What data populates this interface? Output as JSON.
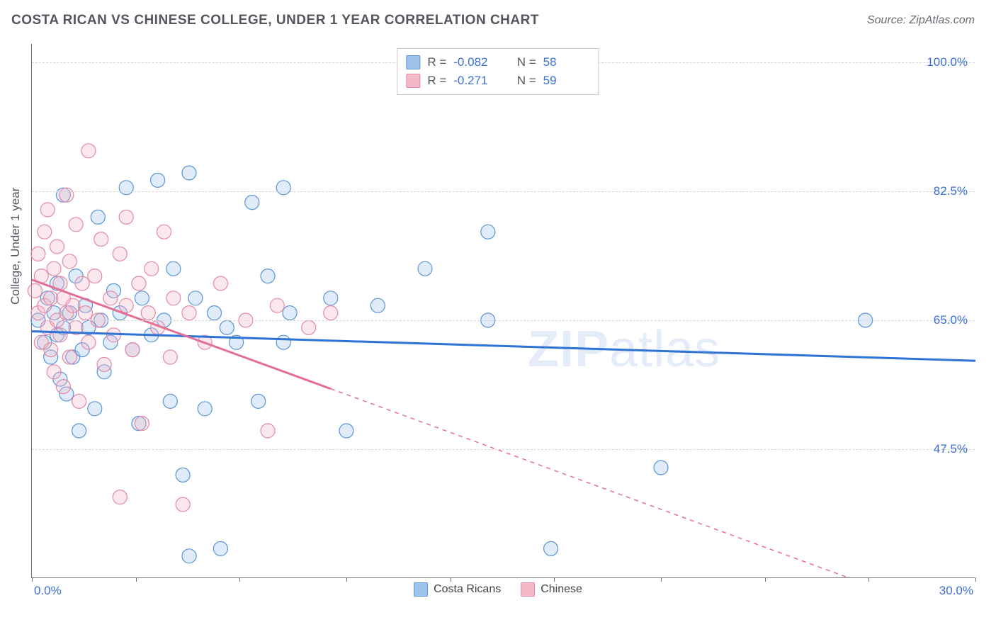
{
  "header": {
    "title": "COSTA RICAN VS CHINESE COLLEGE, UNDER 1 YEAR CORRELATION CHART",
    "source": "Source: ZipAtlas.com"
  },
  "chart": {
    "type": "scatter",
    "y_axis_title": "College, Under 1 year",
    "xlim": [
      0,
      30
    ],
    "ylim": [
      30,
      102.5
    ],
    "x_tick_positions": [
      0,
      3.3,
      6.6,
      10,
      13.3,
      16.6,
      20,
      23.3,
      26.6,
      30
    ],
    "x_label_min": "0.0%",
    "x_label_max": "30.0%",
    "y_ticks": [
      {
        "value": 100.0,
        "label": "100.0%"
      },
      {
        "value": 82.5,
        "label": "82.5%"
      },
      {
        "value": 65.0,
        "label": "65.0%"
      },
      {
        "value": 47.5,
        "label": "47.5%"
      }
    ],
    "grid_color": "#d5d5d5",
    "axis_color": "#707070",
    "background_color": "#ffffff",
    "watermark": "ZIPatlas",
    "marker_radius": 10,
    "series": [
      {
        "name": "Costa Ricans",
        "fill": "#9ec3ec",
        "stroke": "#5a93d6",
        "trend": {
          "x1": 0,
          "y1": 63.5,
          "x2": 30,
          "y2": 59.5,
          "solid_until_x": 30,
          "color": "#2d74d6",
          "width": 3
        },
        "points": [
          [
            0.2,
            65
          ],
          [
            0.4,
            62
          ],
          [
            0.5,
            68
          ],
          [
            0.6,
            60
          ],
          [
            0.7,
            66
          ],
          [
            0.8,
            63
          ],
          [
            0.8,
            70
          ],
          [
            0.9,
            57
          ],
          [
            1.0,
            82
          ],
          [
            1.0,
            64
          ],
          [
            1.1,
            55
          ],
          [
            1.2,
            66
          ],
          [
            1.3,
            60
          ],
          [
            1.4,
            71
          ],
          [
            1.5,
            50
          ],
          [
            1.6,
            61
          ],
          [
            1.7,
            67
          ],
          [
            1.8,
            64
          ],
          [
            2.0,
            53
          ],
          [
            2.1,
            79
          ],
          [
            2.2,
            65
          ],
          [
            2.3,
            58
          ],
          [
            2.5,
            62
          ],
          [
            2.6,
            69
          ],
          [
            2.8,
            66
          ],
          [
            3.0,
            83
          ],
          [
            3.2,
            61
          ],
          [
            3.4,
            51
          ],
          [
            3.5,
            68
          ],
          [
            3.8,
            63
          ],
          [
            4.0,
            84
          ],
          [
            4.2,
            65
          ],
          [
            4.4,
            54
          ],
          [
            4.5,
            72
          ],
          [
            4.8,
            44
          ],
          [
            5.0,
            85
          ],
          [
            5.0,
            33
          ],
          [
            5.2,
            68
          ],
          [
            5.5,
            53
          ],
          [
            5.8,
            66
          ],
          [
            6.0,
            34
          ],
          [
            6.2,
            64
          ],
          [
            6.5,
            62
          ],
          [
            7.0,
            81
          ],
          [
            7.2,
            54
          ],
          [
            7.5,
            71
          ],
          [
            8.0,
            83
          ],
          [
            8.0,
            62
          ],
          [
            8.2,
            66
          ],
          [
            9.5,
            68
          ],
          [
            10.0,
            50
          ],
          [
            11.0,
            67
          ],
          [
            12.5,
            72
          ],
          [
            14.5,
            77
          ],
          [
            16.5,
            34
          ],
          [
            20.0,
            45
          ],
          [
            26.5,
            65
          ],
          [
            14.5,
            65
          ]
        ]
      },
      {
        "name": "Chinese",
        "fill": "#f3b9c8",
        "stroke": "#e389a3",
        "trend": {
          "x1": 0,
          "y1": 70.5,
          "x2": 26,
          "y2": 30,
          "solid_until_x": 9.5,
          "color": "#e26f94",
          "width": 3
        },
        "points": [
          [
            0.1,
            69
          ],
          [
            0.2,
            66
          ],
          [
            0.2,
            74
          ],
          [
            0.3,
            62
          ],
          [
            0.3,
            71
          ],
          [
            0.4,
            67
          ],
          [
            0.4,
            77
          ],
          [
            0.5,
            64
          ],
          [
            0.5,
            80
          ],
          [
            0.6,
            61
          ],
          [
            0.6,
            68
          ],
          [
            0.7,
            72
          ],
          [
            0.7,
            58
          ],
          [
            0.8,
            65
          ],
          [
            0.8,
            75
          ],
          [
            0.9,
            63
          ],
          [
            0.9,
            70
          ],
          [
            1.0,
            56
          ],
          [
            1.0,
            68
          ],
          [
            1.1,
            82
          ],
          [
            1.1,
            66
          ],
          [
            1.2,
            60
          ],
          [
            1.2,
            73
          ],
          [
            1.3,
            67
          ],
          [
            1.4,
            78
          ],
          [
            1.4,
            64
          ],
          [
            1.5,
            54
          ],
          [
            1.6,
            70
          ],
          [
            1.7,
            66
          ],
          [
            1.8,
            62
          ],
          [
            1.8,
            88
          ],
          [
            2.0,
            71
          ],
          [
            2.1,
            65
          ],
          [
            2.2,
            76
          ],
          [
            2.3,
            59
          ],
          [
            2.5,
            68
          ],
          [
            2.6,
            63
          ],
          [
            2.8,
            74
          ],
          [
            2.8,
            41
          ],
          [
            3.0,
            67
          ],
          [
            3.0,
            79
          ],
          [
            3.2,
            61
          ],
          [
            3.4,
            70
          ],
          [
            3.5,
            51
          ],
          [
            3.7,
            66
          ],
          [
            3.8,
            72
          ],
          [
            4.0,
            64
          ],
          [
            4.2,
            77
          ],
          [
            4.4,
            60
          ],
          [
            4.5,
            68
          ],
          [
            4.8,
            40
          ],
          [
            5.0,
            66
          ],
          [
            5.5,
            62
          ],
          [
            6.0,
            70
          ],
          [
            6.8,
            65
          ],
          [
            7.5,
            50
          ],
          [
            7.8,
            67
          ],
          [
            8.8,
            64
          ],
          [
            9.5,
            66
          ]
        ]
      }
    ],
    "top_legend": [
      {
        "swatch_fill": "#9ec3ec",
        "swatch_stroke": "#5a93d6",
        "r_label": "R =",
        "r_value": "-0.082",
        "n_label": "N =",
        "n_value": "58"
      },
      {
        "swatch_fill": "#f3b9c8",
        "swatch_stroke": "#e389a3",
        "r_label": "R =",
        "r_value": "-0.271",
        "n_label": "N =",
        "n_value": "59"
      }
    ],
    "bottom_legend": [
      {
        "swatch_fill": "#9ec3ec",
        "swatch_stroke": "#5a93d6",
        "label": "Costa Ricans"
      },
      {
        "swatch_fill": "#f3b9c8",
        "swatch_stroke": "#e389a3",
        "label": "Chinese"
      }
    ]
  }
}
